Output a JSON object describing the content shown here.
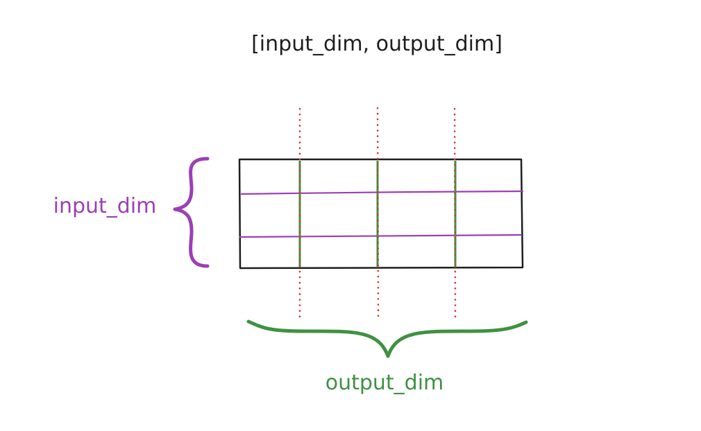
{
  "title": "[input_dim, output_dim]",
  "labels": {
    "input_dim": "input_dim",
    "output_dim": "output_dim"
  },
  "colors": {
    "background": "#ffffff",
    "ink": "#1e1e1e",
    "input_accent": "#9b3fb5",
    "output_accent": "#3f9142",
    "divider": "#e03131"
  },
  "matrix": {
    "rows": 3,
    "columns": 4
  }
}
